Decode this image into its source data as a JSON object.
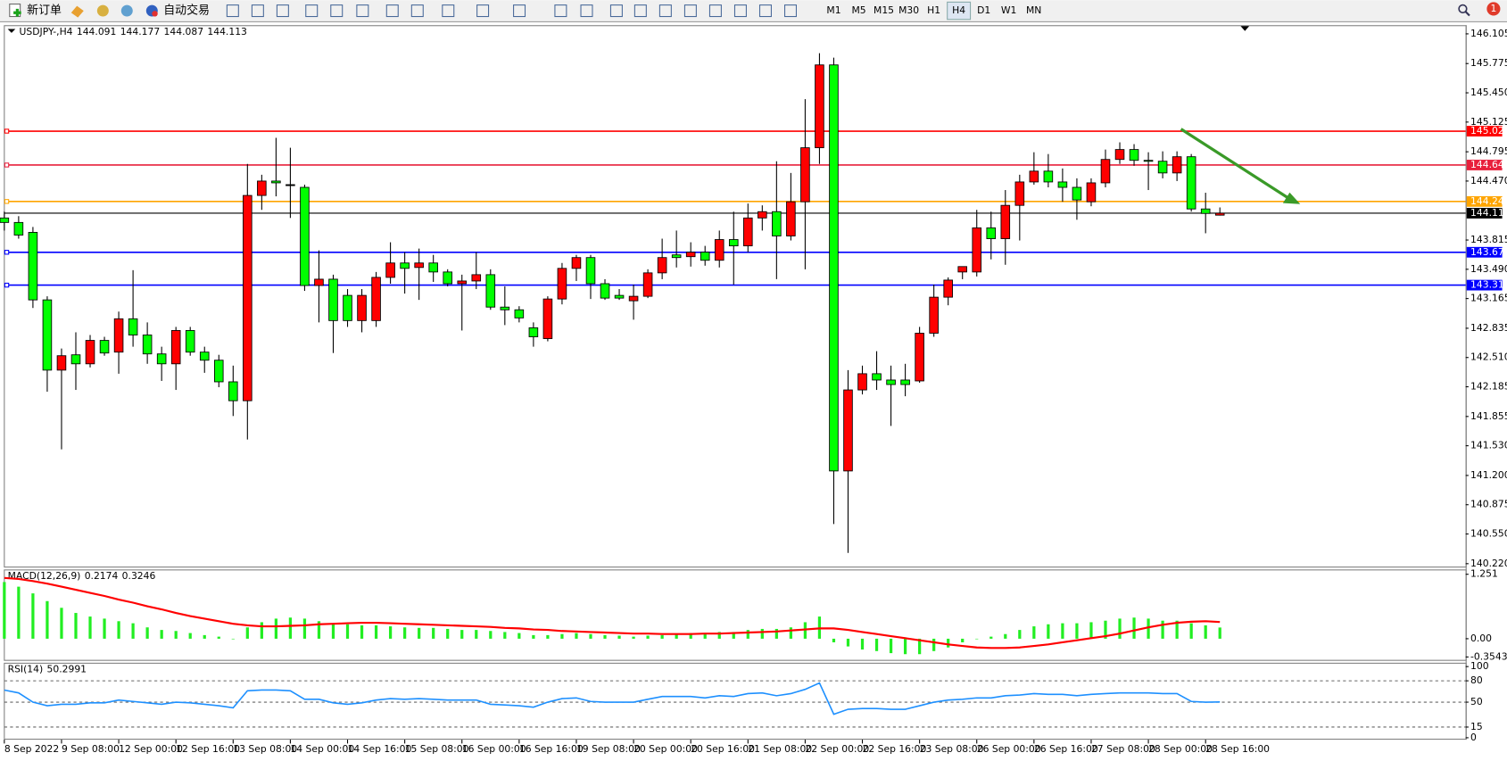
{
  "toolbar": {
    "new_order": "新订单",
    "auto_trading": "自动交易",
    "timeframes": [
      "M1",
      "M5",
      "M15",
      "M30",
      "H1",
      "H4",
      "D1",
      "W1",
      "MN"
    ],
    "active_timeframe": "H4",
    "notifications": 1
  },
  "chart_data": [
    {
      "type": "candlestick",
      "title": "USDJPY-,H4",
      "categories": [
        "8 Sep 2022",
        null,
        null,
        null,
        "9 Sep 08:00",
        null,
        null,
        null,
        "12 Sep 00:00",
        null,
        null,
        null,
        "12 Sep 16:00",
        null,
        null,
        null,
        "13 Sep 08:00",
        null,
        null,
        null,
        "14 Sep 00:00",
        null,
        null,
        null,
        "14 Sep 16:00",
        null,
        null,
        null,
        "15 Sep 08:00",
        null,
        null,
        null,
        "16 Sep 00:00",
        null,
        null,
        null,
        "16 Sep 16:00",
        null,
        null,
        null,
        "19 Sep 08:00",
        null,
        null,
        null,
        "20 Sep 00:00",
        null,
        null,
        null,
        "20 Sep 16:00",
        null,
        null,
        null,
        "21 Sep 08:00",
        null,
        null,
        null,
        "22 Sep 00:00",
        null,
        null,
        null,
        "22 Sep 16:00",
        null,
        null,
        null,
        "23 Sep 08:00",
        null,
        null,
        null,
        "26 Sep 00:00",
        null,
        null,
        null,
        "26 Sep 16:00",
        null,
        null,
        null,
        "27 Sep 08:00",
        null,
        null,
        null,
        "28 Sep 00:00",
        null,
        null,
        null,
        "28 Sep 16:00",
        null
      ],
      "open": [
        144.06,
        144.01,
        143.9,
        143.15,
        142.37,
        142.54,
        142.44,
        142.7,
        142.57,
        142.94,
        142.76,
        142.55,
        142.44,
        142.81,
        142.57,
        142.48,
        142.24,
        142.03,
        144.31,
        144.47,
        144.43,
        144.4,
        143.31,
        143.38,
        143.2,
        142.92,
        142.92,
        143.4,
        143.56,
        143.51,
        143.56,
        143.46,
        143.33,
        143.36,
        143.43,
        143.07,
        143.04,
        142.84,
        142.72,
        143.16,
        143.5,
        143.62,
        143.33,
        143.2,
        143.14,
        143.19,
        143.45,
        143.65,
        143.63,
        143.68,
        143.59,
        143.82,
        143.75,
        144.06,
        144.13,
        143.86,
        144.24,
        144.84,
        145.76,
        141.25,
        142.15,
        142.33,
        142.26,
        142.26,
        142.25,
        142.78,
        143.18,
        143.46,
        143.46,
        143.95,
        143.83,
        144.2,
        144.46,
        144.58,
        144.46,
        144.4,
        144.24,
        144.45,
        144.71,
        144.82,
        144.7,
        144.69,
        144.56,
        144.74,
        144.16,
        144.091
      ],
      "high": [
        144.13,
        144.08,
        143.96,
        143.19,
        142.61,
        142.79,
        142.76,
        142.74,
        143.02,
        143.48,
        142.9,
        142.63,
        142.85,
        142.85,
        142.63,
        142.54,
        142.42,
        144.66,
        144.54,
        144.95,
        144.84,
        144.43,
        143.7,
        143.43,
        143.27,
        143.27,
        143.46,
        143.79,
        143.68,
        143.72,
        143.65,
        143.49,
        143.43,
        143.68,
        143.49,
        143.3,
        143.08,
        142.9,
        143.19,
        143.56,
        143.65,
        143.65,
        143.38,
        143.27,
        143.32,
        143.49,
        143.83,
        143.92,
        143.79,
        143.75,
        143.92,
        144.13,
        144.22,
        144.2,
        144.69,
        144.56,
        145.38,
        145.89,
        145.84,
        142.37,
        142.42,
        142.58,
        142.42,
        142.44,
        142.85,
        143.32,
        143.4,
        143.52,
        144.15,
        144.13,
        144.37,
        144.54,
        144.79,
        144.77,
        144.61,
        144.5,
        144.5,
        144.82,
        144.9,
        144.88,
        144.79,
        144.8,
        144.8,
        144.77,
        144.34,
        144.177
      ],
      "low": [
        143.92,
        143.83,
        143.06,
        142.13,
        141.49,
        142.15,
        142.4,
        142.53,
        142.33,
        142.63,
        142.44,
        142.25,
        142.15,
        142.53,
        142.34,
        142.18,
        141.86,
        141.6,
        144.15,
        144.3,
        144.06,
        143.25,
        142.9,
        142.56,
        142.85,
        142.79,
        142.85,
        143.33,
        143.22,
        143.15,
        143.35,
        143.3,
        142.81,
        143.27,
        143.04,
        142.87,
        142.9,
        142.63,
        142.69,
        143.1,
        143.36,
        143.16,
        143.15,
        143.15,
        142.93,
        143.17,
        143.38,
        143.51,
        143.52,
        143.53,
        143.51,
        143.32,
        143.68,
        143.92,
        143.38,
        143.81,
        143.49,
        144.66,
        140.66,
        140.34,
        142.1,
        142.15,
        141.75,
        142.08,
        142.23,
        142.74,
        143.09,
        143.38,
        143.41,
        143.6,
        143.54,
        143.81,
        144.43,
        144.4,
        144.24,
        144.04,
        144.19,
        144.4,
        144.66,
        144.64,
        144.37,
        144.5,
        144.47,
        144.13,
        143.89,
        144.087
      ],
      "close": [
        144.01,
        143.87,
        143.15,
        142.37,
        142.53,
        142.44,
        142.7,
        142.56,
        142.94,
        142.76,
        142.55,
        142.44,
        142.81,
        142.57,
        142.48,
        142.24,
        142.03,
        144.31,
        144.47,
        144.45,
        144.43,
        143.31,
        143.38,
        142.92,
        142.92,
        143.2,
        143.4,
        143.56,
        143.5,
        143.56,
        143.46,
        143.33,
        143.36,
        143.43,
        143.07,
        143.04,
        142.95,
        142.74,
        143.16,
        143.5,
        143.62,
        143.33,
        143.17,
        143.17,
        143.19,
        143.45,
        143.62,
        143.62,
        143.68,
        143.59,
        143.82,
        143.75,
        144.06,
        144.13,
        143.86,
        144.24,
        144.84,
        145.76,
        141.25,
        142.15,
        142.33,
        142.26,
        142.21,
        142.21,
        142.78,
        143.18,
        143.37,
        143.52,
        143.95,
        143.83,
        144.2,
        144.46,
        144.58,
        144.46,
        144.4,
        144.26,
        144.45,
        144.71,
        144.82,
        144.7,
        144.69,
        144.56,
        144.74,
        144.16,
        144.11,
        144.113
      ],
      "up_color": "#ff0000",
      "down_color": "#00ff00",
      "ylim": [
        140.22,
        146.105
      ],
      "yticks": [
        146.105,
        145.775,
        {
          "value": 145.45,
          "label": "145.450"
        },
        145.125,
        144.795,
        {
          "value": 144.47,
          "label": "144.470"
        },
        143.815,
        {
          "value": 143.49,
          "label": "143.490"
        },
        143.165,
        142.835,
        {
          "value": 142.51,
          "label": "142.510"
        },
        142.185,
        141.855,
        {
          "value": 141.53,
          "label": "141.530"
        },
        {
          "value": 141.2,
          "label": "141.200"
        },
        140.875,
        {
          "value": 140.55,
          "label": "140.550"
        },
        {
          "value": 140.22,
          "label": "140.220"
        }
      ],
      "levels": [
        {
          "value": 145.024,
          "color": "#ff0000"
        },
        {
          "value": 144.648,
          "color": "#e8203c"
        },
        {
          "value": 144.243,
          "color": "#ffa500"
        },
        {
          "value": 143.679,
          "color": "#0000ff"
        },
        {
          "value": 143.314,
          "color": "#0000ff"
        }
      ]
    },
    {
      "type": "macd",
      "title": "MACD(12,26,9)",
      "histogram": {
        "color": "#22ee22",
        "values": [
          1.1,
          1.01,
          0.88,
          0.73,
          0.6,
          0.5,
          0.43,
          0.39,
          0.34,
          0.3,
          0.22,
          0.17,
          0.15,
          0.11,
          0.07,
          0.04,
          -0.01,
          0.22,
          0.32,
          0.39,
          0.41,
          0.39,
          0.34,
          0.3,
          0.28,
          0.26,
          0.26,
          0.24,
          0.22,
          0.21,
          0.21,
          0.19,
          0.17,
          0.17,
          0.15,
          0.13,
          0.11,
          0.07,
          0.07,
          0.09,
          0.11,
          0.09,
          0.07,
          0.06,
          0.04,
          0.06,
          0.07,
          0.09,
          0.11,
          0.11,
          0.13,
          0.13,
          0.17,
          0.19,
          0.19,
          0.22,
          0.32,
          0.43,
          -0.07,
          -0.15,
          -0.21,
          -0.24,
          -0.28,
          -0.3,
          -0.3,
          -0.24,
          -0.17,
          -0.07,
          0,
          0.04,
          0.09,
          0.17,
          0.24,
          0.28,
          0.3,
          0.3,
          0.32,
          0.35,
          0.39,
          0.41,
          0.39,
          0.35,
          0.35,
          0.3,
          0.26,
          0.2174
        ]
      },
      "signal": {
        "color": "#ff0000",
        "values": [
          1.18,
          1.16,
          1.12,
          1.07,
          1.01,
          0.95,
          0.89,
          0.83,
          0.76,
          0.7,
          0.63,
          0.57,
          0.5,
          0.44,
          0.39,
          0.34,
          0.29,
          0.26,
          0.24,
          0.24,
          0.25,
          0.26,
          0.28,
          0.29,
          0.3,
          0.31,
          0.31,
          0.3,
          0.29,
          0.28,
          0.27,
          0.26,
          0.25,
          0.24,
          0.23,
          0.21,
          0.2,
          0.18,
          0.17,
          0.15,
          0.14,
          0.13,
          0.12,
          0.11,
          0.1,
          0.1,
          0.09,
          0.09,
          0.09,
          0.1,
          0.1,
          0.11,
          0.12,
          0.13,
          0.14,
          0.16,
          0.18,
          0.2,
          0.2,
          0.17,
          0.13,
          0.09,
          0.05,
          0.01,
          -0.03,
          -0.07,
          -0.11,
          -0.14,
          -0.17,
          -0.18,
          -0.18,
          -0.17,
          -0.14,
          -0.11,
          -0.07,
          -0.03,
          0.01,
          0.05,
          0.1,
          0.16,
          0.22,
          0.27,
          0.31,
          0.33,
          0.34,
          0.3246
        ]
      },
      "ylim": [
        -0.3543,
        1.251
      ],
      "yticks": [
        1.251,
        {
          "value": 0,
          "label": "0.00"
        },
        -0.3543
      ]
    },
    {
      "type": "line",
      "title": "RSI(14)",
      "color": "#1e90ff",
      "grid": "dashed",
      "values": [
        67,
        63,
        50,
        45,
        47,
        47,
        49,
        49,
        53,
        51,
        49,
        47,
        50,
        49,
        47,
        45,
        42,
        66,
        67,
        67,
        66,
        54,
        54,
        49,
        47,
        49,
        53,
        55,
        54,
        55,
        54,
        53,
        53,
        53,
        47,
        46,
        45,
        43,
        50,
        55,
        56,
        51,
        50,
        50,
        50,
        54,
        58,
        58,
        58,
        56,
        59,
        58,
        62,
        63,
        59,
        62,
        68,
        77,
        33,
        40,
        41,
        41,
        40,
        40,
        45,
        50,
        53,
        54,
        56,
        56,
        59,
        60,
        62,
        61,
        61,
        59,
        61,
        62,
        63,
        63,
        63,
        62,
        62,
        51,
        50,
        50.2991
      ],
      "ylim": [
        0,
        100
      ],
      "yticks": [
        0,
        15,
        50,
        80,
        100
      ]
    }
  ]
}
